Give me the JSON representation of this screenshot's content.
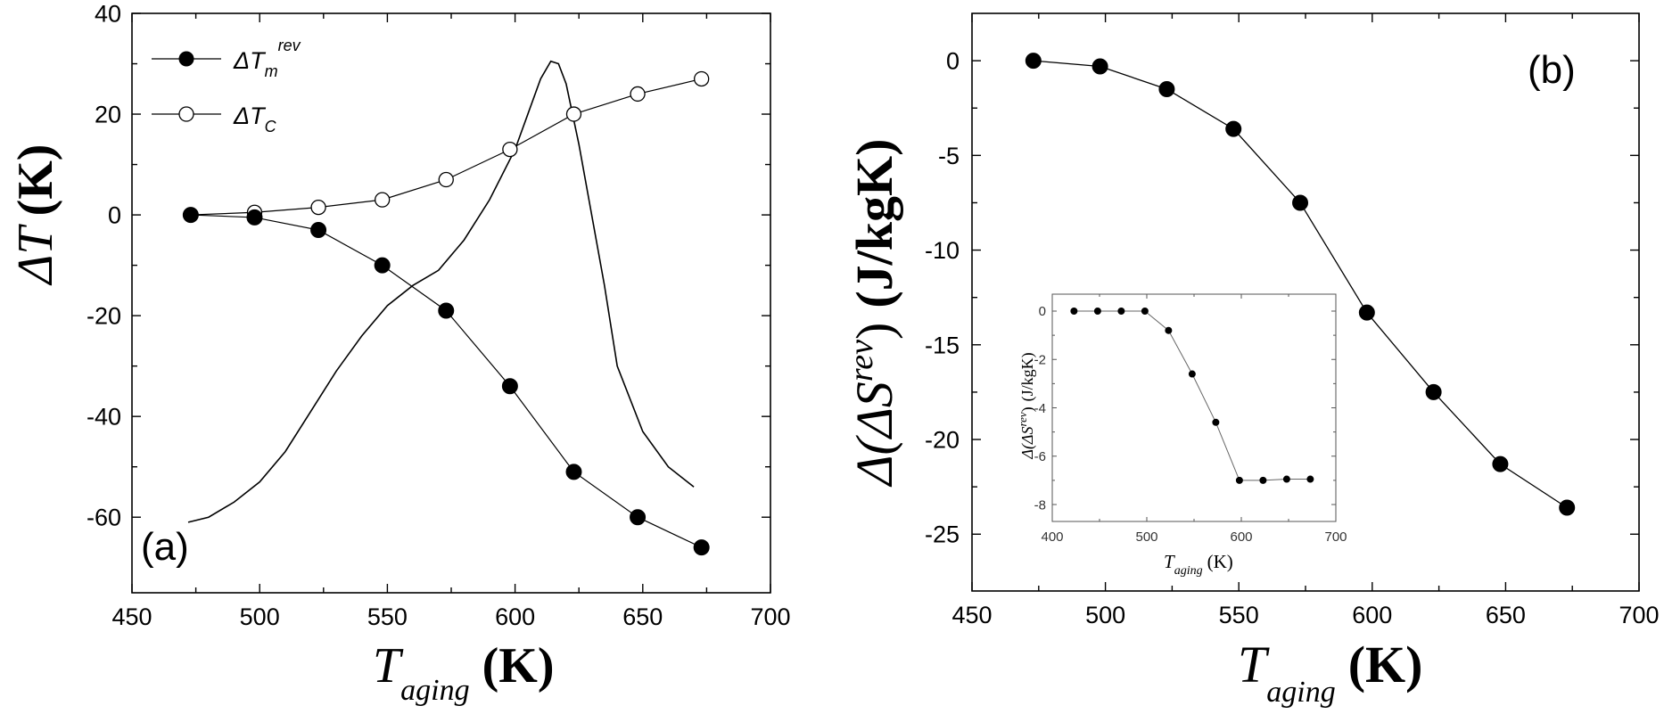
{
  "chart_data": [
    {
      "type": "scatter",
      "panel_label": "(a)",
      "xlabel": {
        "main": "T",
        "sub": "aging",
        "unit": "(K)"
      },
      "ylabel": {
        "main": "ΔT",
        "unit": "(K)"
      },
      "xlim": [
        450,
        700
      ],
      "ylim": [
        -75,
        40
      ],
      "xticks": [
        450,
        500,
        550,
        600,
        650,
        700
      ],
      "yticks": [
        40,
        20,
        0,
        -20,
        -40,
        -60
      ],
      "legend_position": "top-left",
      "series": [
        {
          "name": "ΔT_m^rev",
          "legend": {
            "main": "ΔT",
            "sub": "m",
            "sup": "rev"
          },
          "marker": "filled-circle",
          "x": [
            473,
            498,
            523,
            548,
            573,
            598,
            623,
            648,
            673
          ],
          "y": [
            0,
            -0.5,
            -3,
            -10,
            -19,
            -34,
            -51,
            -60,
            -66
          ]
        },
        {
          "name": "ΔT_C",
          "legend": {
            "main": "ΔT",
            "sub": "C",
            "sup": ""
          },
          "marker": "open-circle",
          "x": [
            473,
            498,
            523,
            548,
            573,
            598,
            623,
            648,
            673
          ],
          "y": [
            0,
            0.5,
            1.5,
            3,
            7,
            13,
            20,
            24,
            27
          ]
        },
        {
          "name": "background-curve",
          "marker": "none",
          "x": [
            472,
            480,
            490,
            500,
            510,
            520,
            530,
            540,
            550,
            560,
            570,
            580,
            590,
            600,
            605,
            610,
            614,
            617,
            620,
            625,
            630,
            635,
            640,
            650,
            660,
            670
          ],
          "y": [
            -61,
            -60,
            -57,
            -53,
            -47,
            -39,
            -31,
            -24,
            -18,
            -14,
            -11,
            -5,
            3,
            13,
            20,
            27,
            30.5,
            30,
            26,
            14,
            0,
            -14,
            -30,
            -43,
            -50,
            -54
          ]
        }
      ]
    },
    {
      "type": "line",
      "panel_label": "(b)",
      "xlabel": {
        "main": "T",
        "sub": "aging",
        "unit": "(K)"
      },
      "ylabel": {
        "text": "Δ(ΔS",
        "sup": "rev",
        "close": ")",
        "unit": "(J/kgK)"
      },
      "xlim": [
        450,
        700
      ],
      "ylim": [
        -28,
        2.5
      ],
      "xticks": [
        450,
        500,
        550,
        600,
        650,
        700
      ],
      "yticks": [
        0,
        -5,
        -10,
        -15,
        -20,
        -25
      ],
      "series": [
        {
          "name": "Δ(ΔS^rev)",
          "marker": "filled-circle",
          "x": [
            473,
            498,
            523,
            548,
            573,
            598,
            623,
            648,
            673
          ],
          "y": [
            0,
            -0.3,
            -1.5,
            -3.6,
            -7.5,
            -13.3,
            -17.5,
            -21.3,
            -23.6
          ]
        }
      ],
      "inset": {
        "type": "line",
        "xlabel": {
          "main": "T",
          "sub": "aging",
          "unit": "(K)"
        },
        "ylabel": {
          "text": "Δ(ΔS",
          "sup": "rev",
          "close": ")",
          "unit": "(J/kgK)"
        },
        "xlim": [
          400,
          700
        ],
        "ylim": [
          -8.7,
          0.7
        ],
        "xticks": [
          400,
          500,
          600,
          700
        ],
        "yticks": [
          0,
          -2,
          -4,
          -6,
          -8
        ],
        "series": [
          {
            "name": "inset-series",
            "marker": "filled-circle",
            "x": [
              423,
              448,
              473,
              498,
              523,
              548,
              573,
              598,
              623,
              648,
              673
            ],
            "y": [
              0,
              0,
              0,
              0,
              -0.8,
              -2.6,
              -4.6,
              -7.0,
              -7.0,
              -6.95,
              -6.95
            ]
          }
        ]
      }
    }
  ]
}
